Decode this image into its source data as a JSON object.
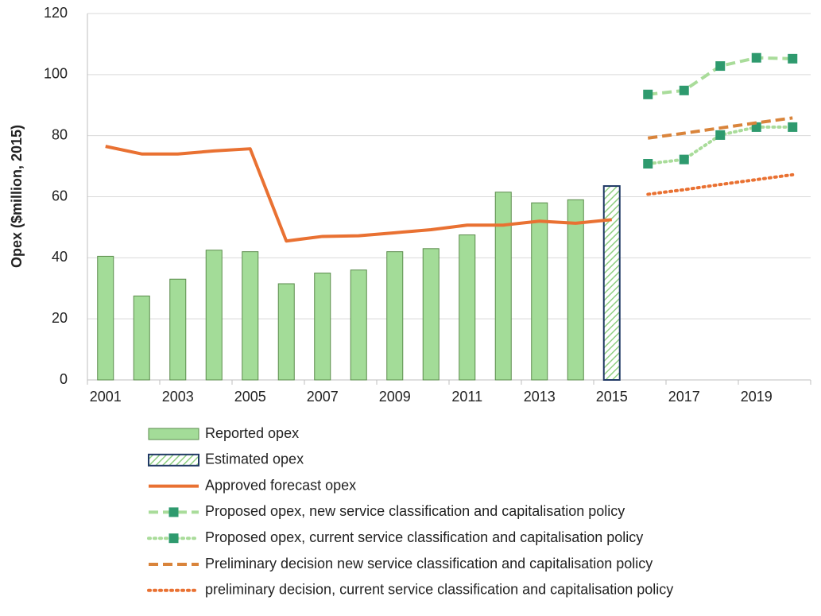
{
  "chart_data": {
    "type": "combo",
    "ylabel": "Opex ($million, 2015)",
    "categories": [
      "2001",
      null,
      "2003",
      null,
      "2005",
      null,
      "2007",
      null,
      "2009",
      null,
      "2011",
      null,
      "2013",
      null,
      "2015",
      null,
      "2017",
      null,
      "2019",
      null
    ],
    "ylim": [
      0,
      120
    ],
    "yticks": [
      0,
      20,
      40,
      60,
      80,
      100,
      120
    ],
    "grid": true,
    "series": [
      {
        "name": "Reported opex",
        "type": "bar",
        "color": "#a3dc98",
        "edge": "#5b8c4c",
        "values": [
          40.5,
          27.5,
          33,
          42.5,
          42,
          31.5,
          35,
          36,
          42,
          43,
          47.5,
          61.5,
          58,
          59,
          null,
          null,
          null,
          null,
          null,
          null
        ]
      },
      {
        "name": "Estimated opex",
        "type": "bar",
        "color": "#a3dc98",
        "edge": "#1f3864",
        "hatch": true,
        "values": [
          null,
          null,
          null,
          null,
          null,
          null,
          null,
          null,
          null,
          null,
          null,
          null,
          null,
          null,
          63.5,
          null,
          null,
          null,
          null,
          null
        ]
      },
      {
        "name": "Approved forecast opex",
        "type": "line",
        "color": "#e97132",
        "line_style": "solid",
        "values": [
          76.5,
          74,
          74,
          75,
          75.7,
          45.5,
          47,
          47.2,
          48.2,
          49.2,
          50.7,
          50.7,
          52,
          51.3,
          52.5,
          null,
          null,
          null,
          null,
          null
        ]
      },
      {
        "name": "Proposed opex, new service classification and capitalisation policy",
        "type": "line",
        "color": "#a9dc9a",
        "line_style": "dashed",
        "marker": "square",
        "marker_color": "#2e9a6e",
        "values": [
          null,
          null,
          null,
          null,
          null,
          null,
          null,
          null,
          null,
          null,
          null,
          null,
          null,
          null,
          null,
          93.5,
          94.8,
          102.8,
          105.5,
          105.2
        ]
      },
      {
        "name": "Proposed opex, current service classification and capitalisation policy",
        "type": "line",
        "color": "#a9dc9a",
        "line_style": "dotted",
        "marker": "square",
        "marker_color": "#2e9a6e",
        "values": [
          null,
          null,
          null,
          null,
          null,
          null,
          null,
          null,
          null,
          null,
          null,
          null,
          null,
          null,
          null,
          70.8,
          72.2,
          80.2,
          82.8,
          82.8
        ]
      },
      {
        "name": "Preliminary decision new service classification and capitalisation policy",
        "type": "line",
        "color": "#d9843b",
        "line_style": "dashed",
        "values": [
          null,
          null,
          null,
          null,
          null,
          null,
          null,
          null,
          null,
          null,
          null,
          null,
          null,
          null,
          null,
          79.2,
          80.8,
          82.5,
          84.2,
          85.8
        ]
      },
      {
        "name": "preliminary decision, current service classification and capitalisation policy",
        "type": "line",
        "color": "#e97132",
        "line_style": "dotted",
        "values": [
          null,
          null,
          null,
          null,
          null,
          null,
          null,
          null,
          null,
          null,
          null,
          null,
          null,
          null,
          null,
          60.8,
          62.3,
          64,
          65.6,
          67.2
        ]
      }
    ]
  }
}
